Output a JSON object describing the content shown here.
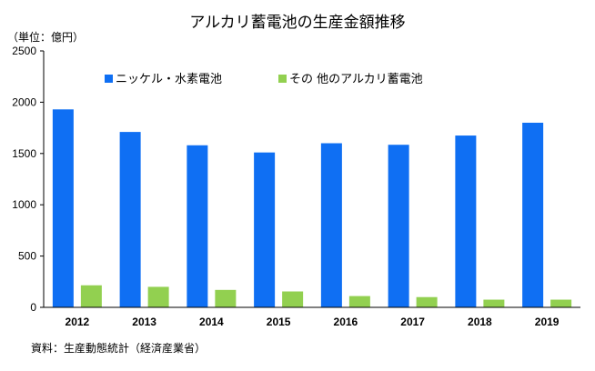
{
  "chart_data": {
    "type": "bar",
    "title": "アルカリ蓄電池の生産金額推移",
    "unit_label": "（単位：億円）",
    "source": "資料：生産動態統計（経済産業省）",
    "categories": [
      "2012",
      "2013",
      "2014",
      "2015",
      "2016",
      "2017",
      "2018",
      "2019"
    ],
    "ylim": [
      0,
      2500
    ],
    "yticks": [
      0,
      500,
      1000,
      1500,
      2000,
      2500
    ],
    "grid": false,
    "legend_position": "top",
    "series": [
      {
        "name": "ニッケル・水素電池",
        "color": "#0f6ff3",
        "values": [
          1930,
          1710,
          1580,
          1510,
          1600,
          1585,
          1675,
          1800
        ]
      },
      {
        "name": "その 他のアルカリ蓄電池",
        "color": "#92d050",
        "values": [
          215,
          200,
          170,
          155,
          110,
          100,
          75,
          75
        ]
      }
    ]
  }
}
